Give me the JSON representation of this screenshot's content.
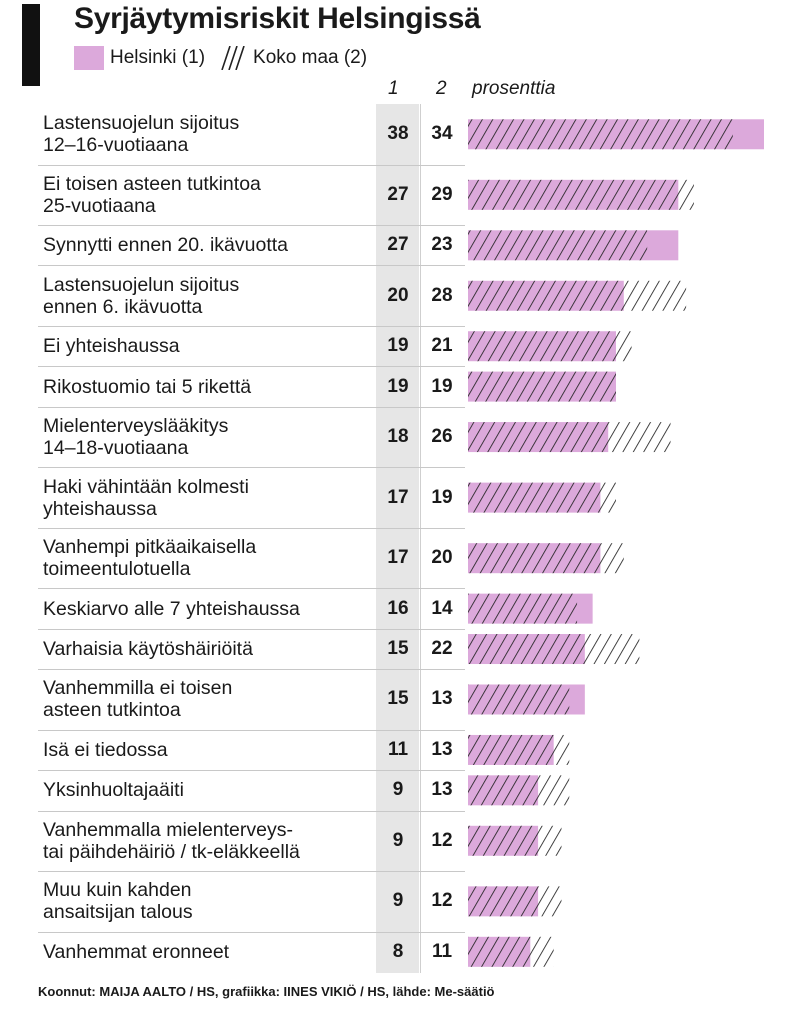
{
  "title": "Syrjäytymisriskit Helsingissä",
  "legend": {
    "helsinki": "Helsinki (1)",
    "koko_maa": "Koko maa (2)"
  },
  "columns": {
    "c1": "1",
    "c2": "2",
    "unit": "prosenttia"
  },
  "colors": {
    "helsinki": "#dca9db",
    "hatch": "#222222",
    "column_bg": "#e6e6e6",
    "accent": "#111111"
  },
  "footer": "Koonnut: MAIJA AALTO / HS, grafiikka: IINES VIKIÖ / HS, lähde: Me-säätiö",
  "chart_data": {
    "type": "bar",
    "orientation": "horizontal",
    "title": "Syrjäytymisriskit Helsingissä",
    "unit": "prosenttia",
    "categories": [
      "Lastensuojelun sijoitus\n12–16-vuotiaana",
      "Ei toisen asteen tutkintoa\n25-vuotiaana",
      "Synnytti ennen 20. ikävuotta",
      "Lastensuojelun sijoitus\nennen 6. ikävuotta",
      "Ei yhteishaussa",
      "Rikostuomio tai 5 rikettä",
      "Mielenterveyslääkitys\n14–18-vuotiaana",
      "Haki vähintään kolmesti\nyhteishaussa",
      "Vanhempi pitkäaikaisella\ntoimeentulotuella",
      "Keskiarvo alle 7 yhteishaussa",
      "Varhaisia käytöshäiriöitä",
      "Vanhemmilla ei toisen\nasteen tutkintoa",
      "Isä ei tiedossa",
      "Yksinhuoltajaäiti",
      "Vanhemmalla mielenterveys-\ntai päihdehäiriö / tk-eläkkeellä",
      "Muu kuin kahden\nansaitsijan talous",
      "Vanhemmat eronneet"
    ],
    "series": [
      {
        "name": "Helsinki (1)",
        "values": [
          38,
          27,
          27,
          20,
          19,
          19,
          18,
          17,
          17,
          16,
          15,
          15,
          11,
          9,
          9,
          9,
          8
        ]
      },
      {
        "name": "Koko maa (2)",
        "values": [
          34,
          29,
          23,
          28,
          21,
          19,
          26,
          19,
          20,
          14,
          22,
          13,
          13,
          13,
          12,
          12,
          11
        ]
      }
    ],
    "xlim": [
      0,
      38
    ],
    "legend_position": "top-left",
    "grid": false
  }
}
